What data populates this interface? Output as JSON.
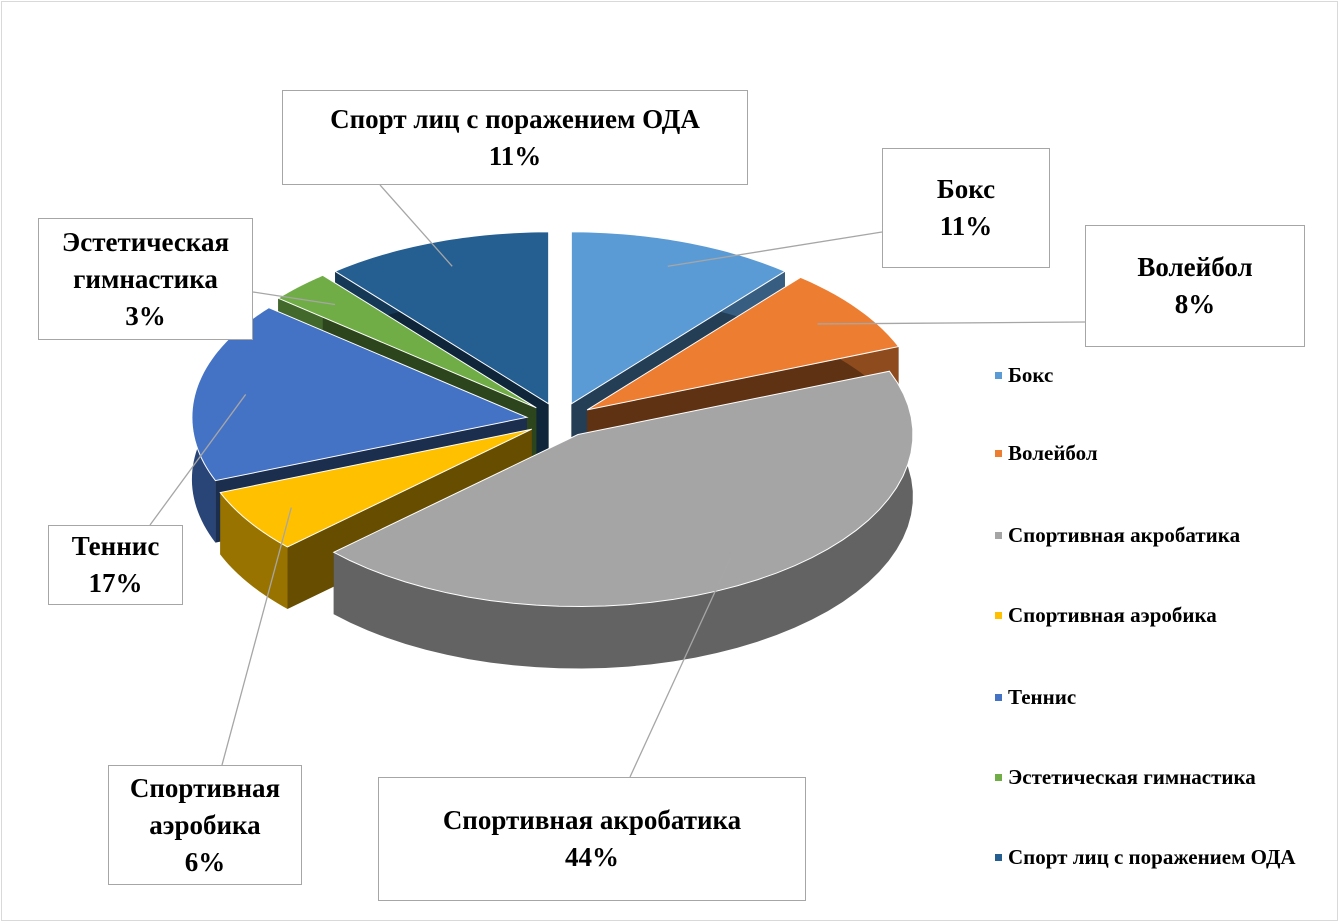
{
  "chart_data": {
    "type": "pie",
    "categories": [
      "Бокс",
      "Волейбол",
      "Спортивная акробатика",
      "Спортивная аэробика",
      "Теннис",
      "Эстетическая гимнастика",
      "Спорт лиц с поражением ОДА"
    ],
    "values": [
      11,
      8,
      44,
      6,
      17,
      3,
      11
    ],
    "value_labels": [
      "11%",
      "8%",
      "44%",
      "6%",
      "17%",
      "3%",
      "11%"
    ],
    "colors": [
      "#5b9bd5",
      "#ed7d31",
      "#a5a5a5",
      "#ffc000",
      "#4472c4",
      "#70ad47",
      "#255e91"
    ],
    "legend": "right"
  }
}
